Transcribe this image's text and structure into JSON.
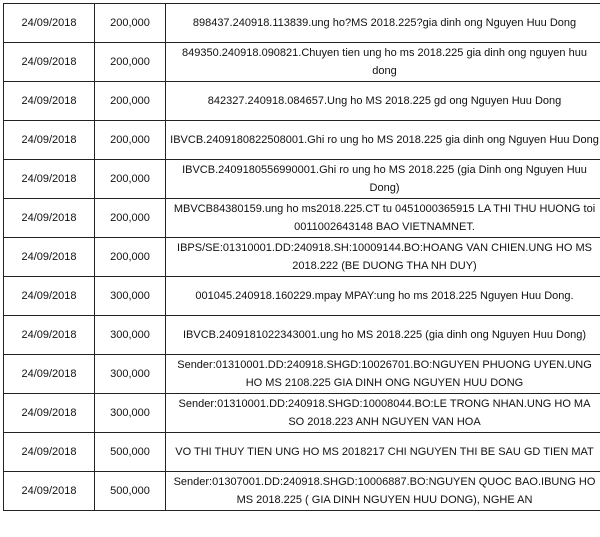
{
  "rows": [
    {
      "date": "24/09/2018",
      "amount": "200,000",
      "description": "898437.240918.113839.ung ho?MS 2018.225?gia dinh ong Nguyen Huu Dong"
    },
    {
      "date": "24/09/2018",
      "amount": "200,000",
      "description": "849350.240918.090821.Chuyen tien ung ho ms 2018.225 gia dinh ong nguyen huu dong"
    },
    {
      "date": "24/09/2018",
      "amount": "200,000",
      "description": "842327.240918.084657.Ung ho MS 2018.225 gd ong Nguyen Huu Dong"
    },
    {
      "date": "24/09/2018",
      "amount": "200,000",
      "description": "IBVCB.2409180822508001.Ghi ro ung ho MS 2018.225 gia dinh ong Nguyen Huu Dong"
    },
    {
      "date": "24/09/2018",
      "amount": "200,000",
      "description": "IBVCB.2409180556990001.Ghi ro ung ho MS 2018.225 (gia Dinh ong Nguyen Huu Dong)"
    },
    {
      "date": "24/09/2018",
      "amount": "200,000",
      "description": "MBVCB84380159.ung ho ms2018.225.CT tu 0451000365915 LA THI THU HUONG toi 0011002643148 BAO VIETNAMNET."
    },
    {
      "date": "24/09/2018",
      "amount": "200,000",
      "description": "IBPS/SE:01310001.DD:240918.SH:10009144.BO:HOANG VAN CHIEN.UNG HO MS 2018.222 (BE DUONG THA NH DUY)"
    },
    {
      "date": "24/09/2018",
      "amount": "300,000",
      "description": "001045.240918.160229.mpay MPAY:ung ho ms 2018.225 Nguyen Huu Dong."
    },
    {
      "date": "24/09/2018",
      "amount": "300,000",
      "description": "IBVCB.2409181022343001.ung ho MS 2018.225 (gia dinh ong Nguyen Huu Dong)"
    },
    {
      "date": "24/09/2018",
      "amount": "300,000",
      "description": "Sender:01310001.DD:240918.SHGD:10026701.BO:NGUYEN PHUONG UYEN.UNG HO MS 2108.225 GIA DINH ONG NGUYEN HUU DONG"
    },
    {
      "date": "24/09/2018",
      "amount": "300,000",
      "description": "Sender:01310001.DD:240918.SHGD:10008044.BO:LE TRONG NHAN.UNG HO MA SO 2018.223 ANH NGUYEN VAN HOA"
    },
    {
      "date": "24/09/2018",
      "amount": "500,000",
      "description": "VO THI THUY TIEN UNG HO MS 2018217 CHI NGUYEN THI BE SAU GD TIEN MAT"
    },
    {
      "date": "24/09/2018",
      "amount": "500,000",
      "description": "Sender:01307001.DD:240918.SHGD:10006887.BO:NGUYEN QUOC BAO.IBUNG HO MS 2018.225 ( GIA DINH NGUYEN HUU DONG), NGHE AN"
    }
  ]
}
